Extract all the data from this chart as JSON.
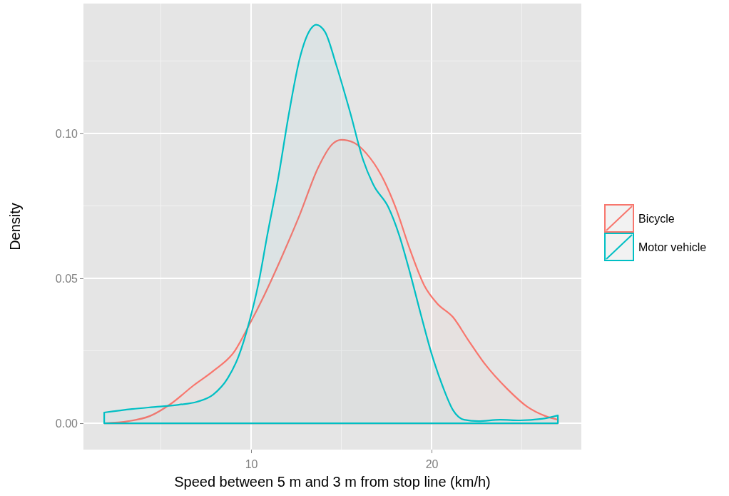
{
  "chart_data": {
    "type": "area",
    "xlabel": "Speed between 5 m and 3 m from stop line (km/h)",
    "ylabel": "Density",
    "xlim": [
      0.71,
      28.3
    ],
    "ylim": [
      -0.0091,
      0.1448
    ],
    "xticks": [
      10,
      20
    ],
    "yticks": [
      {
        "value": 0,
        "label": "0.00"
      },
      {
        "value": 0.05,
        "label": "0.05"
      },
      {
        "value": 0.1,
        "label": "0.10"
      }
    ],
    "grid": true,
    "legend": "right",
    "series": [
      {
        "name": "Bicycle",
        "color": "#f8766d",
        "x": [
          1.86,
          3.2,
          4.4,
          5.6,
          6.8,
          7.9,
          9.1,
          9.9,
          10.7,
          11.7,
          12.7,
          13.7,
          14.5,
          15.0,
          15.7,
          16.4,
          17.2,
          18.0,
          18.8,
          19.6,
          20.3,
          21.2,
          22.0,
          22.96,
          24.2,
          25.3,
          26.3,
          27.0
        ],
        "values": [
          0,
          0.0007,
          0.0025,
          0.0069,
          0.013,
          0.018,
          0.025,
          0.034,
          0.0438,
          0.0574,
          0.072,
          0.088,
          0.0963,
          0.0978,
          0.0968,
          0.093,
          0.0857,
          0.0746,
          0.06,
          0.0475,
          0.0414,
          0.0365,
          0.029,
          0.0204,
          0.0118,
          0.0057,
          0.0025,
          0.0012
        ]
      },
      {
        "name": "Motor vehicle",
        "color": "#00bfc4",
        "x": [
          1.86,
          3.4,
          4.8,
          6.0,
          7.0,
          7.9,
          8.7,
          9.3,
          9.9,
          10.4,
          10.9,
          11.5,
          12.1,
          12.7,
          13.3,
          13.6,
          14.1,
          14.7,
          15.5,
          16.2,
          16.8,
          17.6,
          18.2,
          18.8,
          19.4,
          20.0,
          20.6,
          21.2,
          21.8,
          22.6,
          23.8,
          24.9,
          26.1,
          27.0
        ],
        "values": [
          0.0037,
          0.0049,
          0.0057,
          0.0064,
          0.0074,
          0.0099,
          0.0155,
          0.023,
          0.035,
          0.048,
          0.065,
          0.0845,
          0.107,
          0.126,
          0.136,
          0.1375,
          0.135,
          0.124,
          0.107,
          0.091,
          0.082,
          0.0746,
          0.065,
          0.052,
          0.0377,
          0.024,
          0.013,
          0.0044,
          0.0012,
          0.0007,
          0.0012,
          0.001,
          0.0015,
          0.0027
        ]
      }
    ]
  }
}
